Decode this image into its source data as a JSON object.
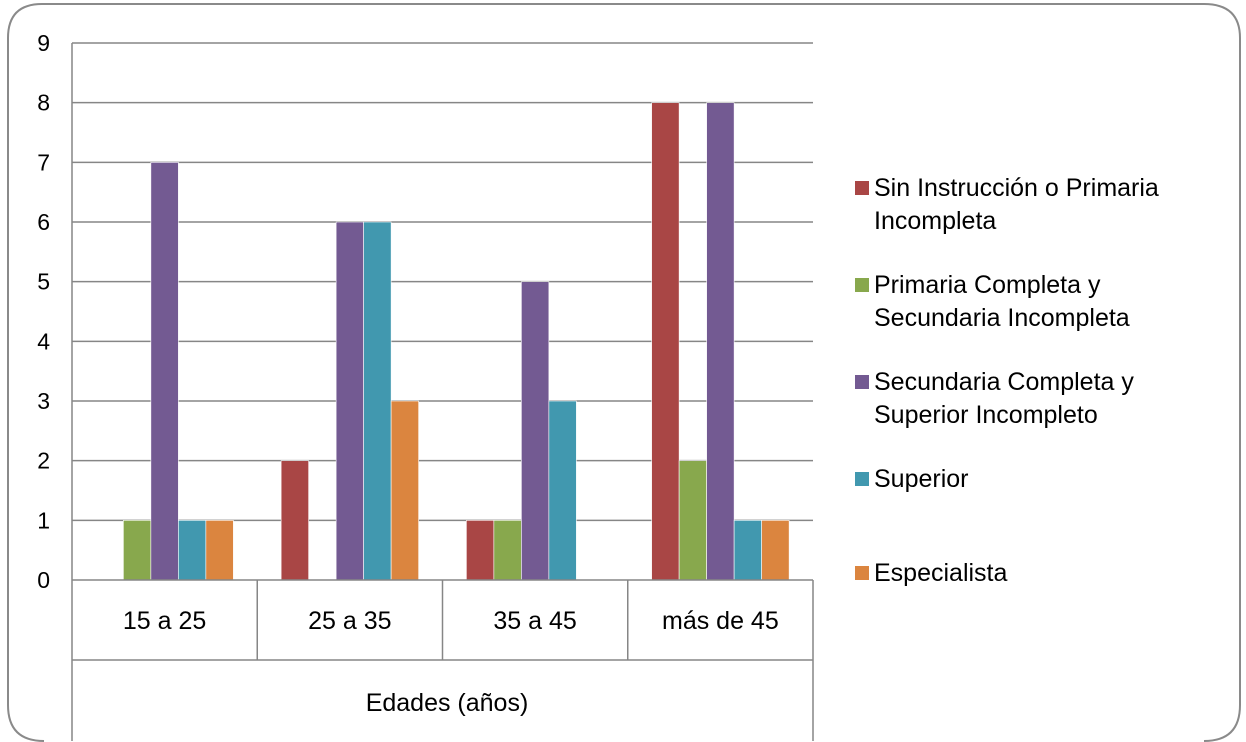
{
  "chart_data": {
    "type": "bar",
    "title": "",
    "xlabel": "Edades (años)",
    "ylabel": "",
    "ylim": [
      0,
      9
    ],
    "yticks": [
      "0",
      "1",
      "2",
      "3",
      "4",
      "5",
      "6",
      "7",
      "8",
      "9"
    ],
    "categories": [
      "15 a 25",
      "25 a 35",
      "35 a 45",
      "más de 45"
    ],
    "grid": true,
    "legend_position": "right",
    "series": [
      {
        "name": "Sin Instrucción o Primaria Incompleta",
        "legend_lines": [
          "Sin Instrucción o Primaria",
          "Incompleta"
        ],
        "color": "#A94645",
        "values": [
          0,
          2,
          1,
          8
        ]
      },
      {
        "name": "Primaria Completa y Secundaria Incompleta",
        "legend_lines": [
          "Primaria Completa y",
          "Secundaria Incompleta"
        ],
        "color": "#88A84D",
        "values": [
          1,
          0,
          1,
          2
        ]
      },
      {
        "name": "Secundaria Completa y Superior Incompleto",
        "legend_lines": [
          "Secundaria Completa y",
          "Superior Incompleto"
        ],
        "color": "#735A92",
        "values": [
          7,
          6,
          5,
          8
        ]
      },
      {
        "name": "Superior",
        "legend_lines": [
          "Superior"
        ],
        "color": "#4198AF",
        "values": [
          1,
          6,
          3,
          1
        ]
      },
      {
        "name": "Especialista",
        "legend_lines": [
          "Especialista"
        ],
        "color": "#DB853F",
        "values": [
          1,
          3,
          0,
          1
        ]
      }
    ]
  }
}
